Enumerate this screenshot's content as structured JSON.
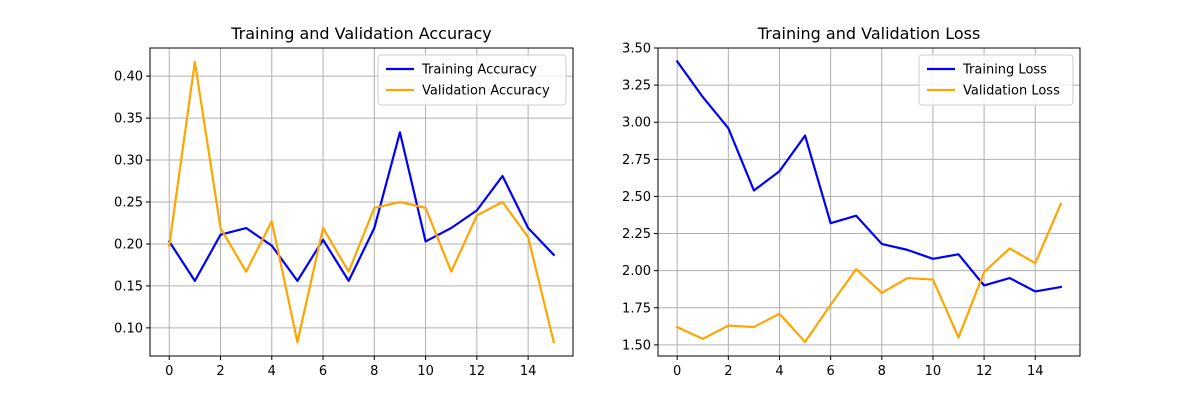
{
  "chart_data": [
    {
      "type": "line",
      "title": "Training and Validation Accuracy",
      "xlabel": "",
      "ylabel": "",
      "xlim": [
        -0.75,
        15.75
      ],
      "ylim": [
        0.0665,
        0.4335
      ],
      "x_ticks": [
        0,
        2,
        4,
        6,
        8,
        10,
        12,
        14
      ],
      "y_ticks": [
        0.1,
        0.15,
        0.2,
        0.25,
        0.3,
        0.35,
        0.4
      ],
      "y_tick_labels": [
        "0.10",
        "0.15",
        "0.20",
        "0.25",
        "0.30",
        "0.35",
        "0.40"
      ],
      "grid": true,
      "legend_position": "top-right",
      "x": [
        0,
        1,
        2,
        3,
        4,
        5,
        6,
        7,
        8,
        9,
        10,
        11,
        12,
        13,
        14,
        15
      ],
      "series": [
        {
          "name": "Training Accuracy",
          "color": "#0000ff",
          "values": [
            0.203,
            0.156,
            0.211,
            0.219,
            0.198,
            0.156,
            0.205,
            0.156,
            0.219,
            0.333,
            0.203,
            0.219,
            0.24,
            0.281,
            0.219,
            0.187
          ]
        },
        {
          "name": "Validation Accuracy",
          "color": "#ffa500",
          "values": [
            0.198,
            0.417,
            0.219,
            0.167,
            0.227,
            0.083,
            0.219,
            0.167,
            0.243,
            0.25,
            0.243,
            0.167,
            0.234,
            0.25,
            0.208,
            0.083
          ]
        }
      ]
    },
    {
      "type": "line",
      "title": "Training and Validation Loss",
      "xlabel": "",
      "ylabel": "",
      "xlim": [
        -0.75,
        15.75
      ],
      "ylim": [
        1.425,
        3.5
      ],
      "x_ticks": [
        0,
        2,
        4,
        6,
        8,
        10,
        12,
        14
      ],
      "y_ticks": [
        1.5,
        1.75,
        2.0,
        2.25,
        2.5,
        2.75,
        3.0,
        3.25,
        3.5
      ],
      "y_tick_labels": [
        "1.50",
        "1.75",
        "2.00",
        "2.25",
        "2.50",
        "2.75",
        "3.00",
        "3.25",
        "3.50"
      ],
      "grid": true,
      "legend_position": "top-right",
      "x": [
        0,
        1,
        2,
        3,
        4,
        5,
        6,
        7,
        8,
        9,
        10,
        11,
        12,
        13,
        14,
        15
      ],
      "series": [
        {
          "name": "Training Loss",
          "color": "#0000ff",
          "values": [
            3.41,
            3.17,
            2.96,
            2.54,
            2.67,
            2.91,
            2.32,
            2.37,
            2.18,
            2.14,
            2.08,
            2.11,
            1.9,
            1.95,
            1.86,
            1.89
          ]
        },
        {
          "name": "Validation Loss",
          "color": "#ffa500",
          "values": [
            1.62,
            1.54,
            1.63,
            1.62,
            1.71,
            1.52,
            1.77,
            2.01,
            1.85,
            1.95,
            1.94,
            1.55,
            1.99,
            2.15,
            2.05,
            2.45
          ]
        }
      ]
    }
  ]
}
